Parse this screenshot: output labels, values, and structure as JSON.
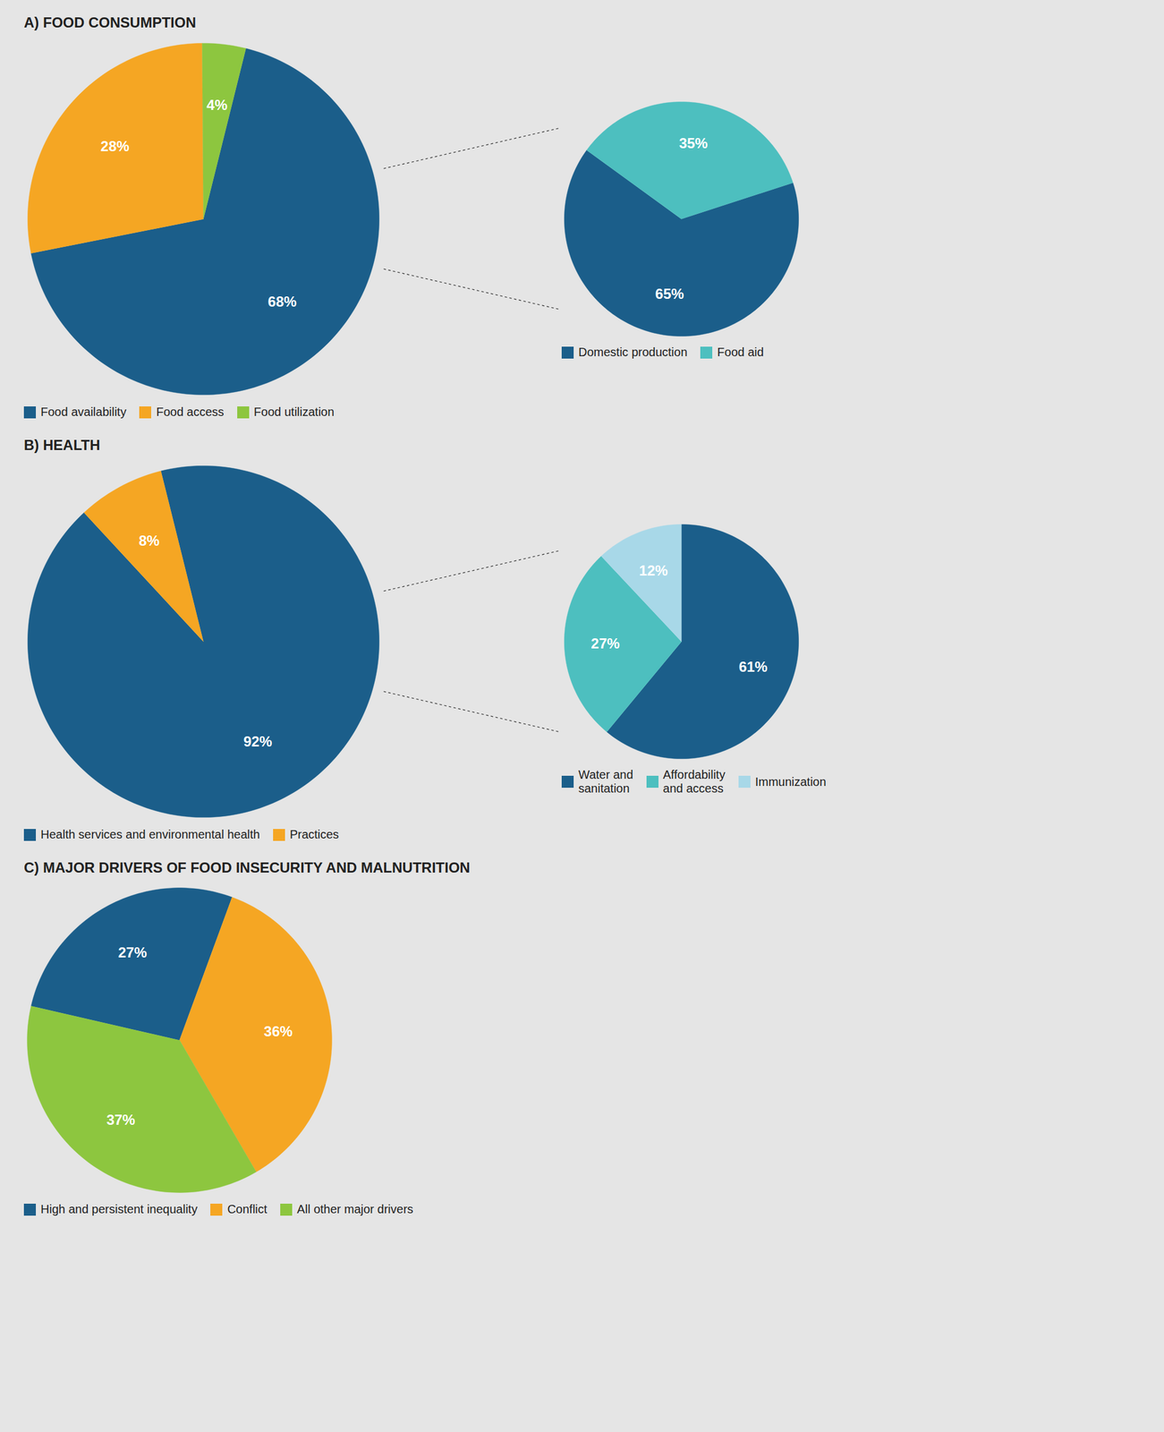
{
  "chart_data": [
    {
      "type": "pie",
      "title": "A) FOOD CONSUMPTION",
      "categories": [
        "Food availability",
        "Food access",
        "Food utilization"
      ],
      "values": [
        68,
        28,
        4
      ],
      "value_labels": [
        "68%",
        "28%",
        "4%"
      ],
      "colors": [
        "#1b5e8a",
        "#f5a623",
        "#8dc63f"
      ],
      "data_labels": true,
      "legend": "bottom"
    },
    {
      "type": "pie",
      "categories": [
        "Domestic production",
        "Food aid"
      ],
      "values": [
        65,
        35
      ],
      "value_labels": [
        "65%",
        "35%"
      ],
      "colors": [
        "#1b5e8a",
        "#4dbfbf"
      ],
      "data_labels": true,
      "legend": "bottom"
    },
    {
      "type": "pie",
      "title": "B) HEALTH",
      "categories": [
        "Health services and environmental health",
        "Practices"
      ],
      "values": [
        92,
        8
      ],
      "value_labels": [
        "92%",
        "8%"
      ],
      "colors": [
        "#1b5e8a",
        "#f5a623"
      ],
      "data_labels": true,
      "legend": "bottom"
    },
    {
      "type": "pie",
      "categories": [
        "Water and\nsanitation",
        "Affordability\nand access",
        "Immunization"
      ],
      "values": [
        61,
        27,
        12
      ],
      "value_labels": [
        "61%",
        "27%",
        "12%"
      ],
      "colors": [
        "#1b5e8a",
        "#4dbfbf",
        "#a8d8e8"
      ],
      "data_labels": true,
      "legend": "bottom"
    },
    {
      "type": "pie",
      "title": "C) MAJOR DRIVERS OF FOOD INSECURITY AND MALNUTRITION",
      "categories": [
        "High and persistent inequality",
        "Conflict",
        "All other major drivers"
      ],
      "values": [
        27,
        36,
        37
      ],
      "value_labels": [
        "27%",
        "36%",
        "37%"
      ],
      "colors": [
        "#1b5e8a",
        "#f5a623",
        "#8dc63f"
      ],
      "data_labels": true,
      "legend": "bottom"
    }
  ]
}
